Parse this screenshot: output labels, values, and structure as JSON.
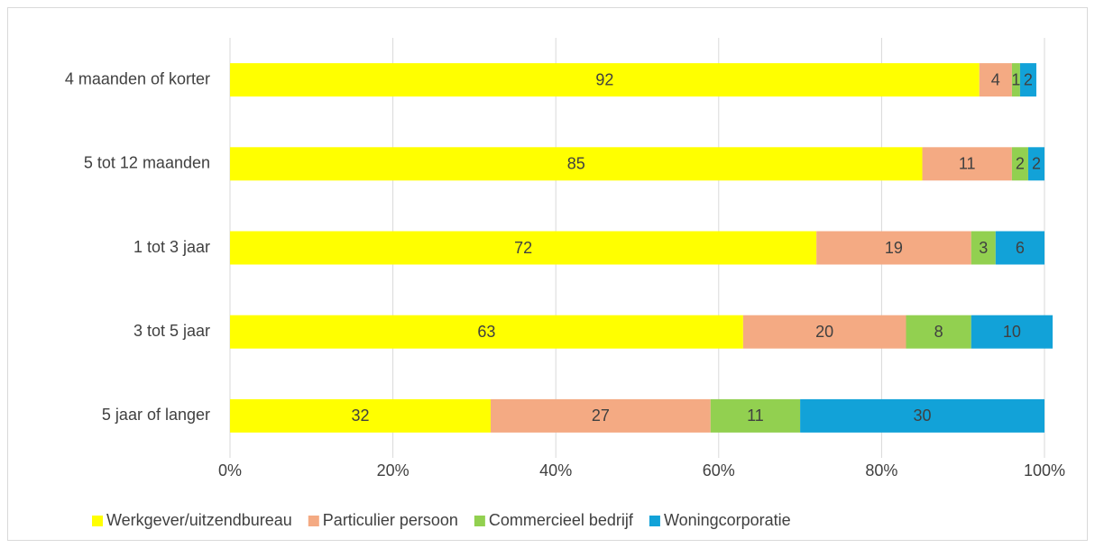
{
  "chart_data": {
    "type": "stacked-bar-horizontal",
    "categories": [
      "4 maanden of korter",
      "5 tot 12 maanden",
      "1 tot 3 jaar",
      "3 tot 5 jaar",
      "5 jaar of langer"
    ],
    "series": [
      {
        "name": "Werkgever/uitzendbureau",
        "color": "#ffff00",
        "values": [
          92,
          85,
          72,
          63,
          32
        ]
      },
      {
        "name": "Particulier persoon",
        "color": "#f4aa83",
        "values": [
          4,
          11,
          19,
          20,
          27
        ]
      },
      {
        "name": "Commercieel bedrijf",
        "color": "#92d050",
        "values": [
          1,
          2,
          3,
          8,
          11
        ]
      },
      {
        "name": "Woningcorporatie",
        "color": "#12a2d8",
        "values": [
          2,
          2,
          6,
          10,
          30
        ]
      }
    ],
    "xlim": [
      0,
      100
    ],
    "xticks": [
      {
        "value": 0,
        "label": "0%"
      },
      {
        "value": 20,
        "label": "20%"
      },
      {
        "value": 40,
        "label": "40%"
      },
      {
        "value": 60,
        "label": "60%"
      },
      {
        "value": 80,
        "label": "80%"
      },
      {
        "value": 100,
        "label": "100%"
      }
    ],
    "grid": true,
    "legend": "bottom"
  }
}
